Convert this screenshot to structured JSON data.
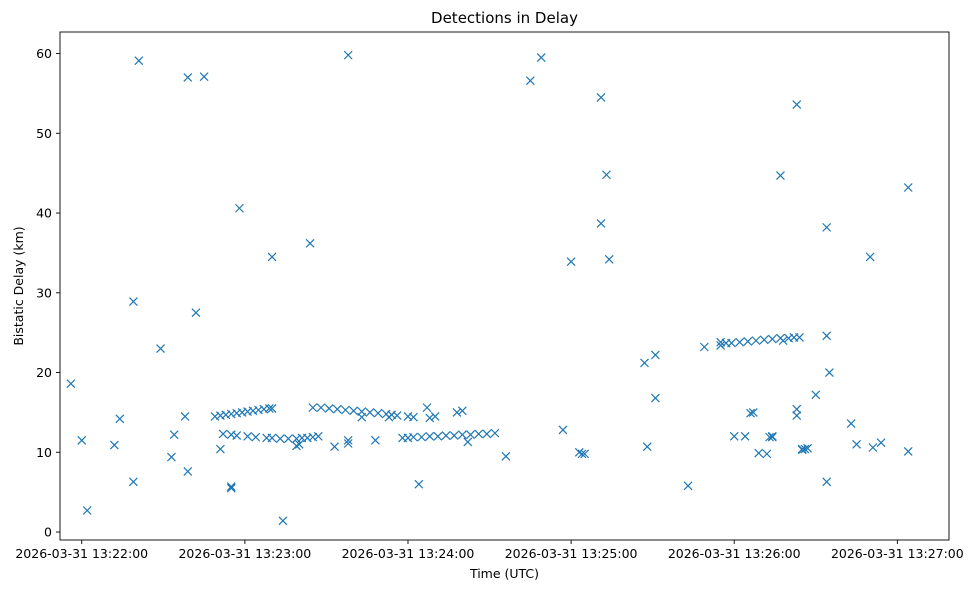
{
  "chart_data": {
    "type": "scatter",
    "title": "Detections in Delay",
    "xlabel": "Time (UTC)",
    "ylabel": "Bistatic Delay (km)",
    "x_tick_labels": [
      "2026-03-31 13:22:00",
      "2026-03-31 13:23:00",
      "2026-03-31 13:24:00",
      "2026-03-31 13:25:00",
      "2026-03-31 13:26:00",
      "2026-03-31 13:27:00"
    ],
    "y_tick_labels": [
      "0",
      "10",
      "20",
      "30",
      "40",
      "50",
      "60"
    ],
    "xlim": [
      "2026-03-31 13:21:52",
      "2026-03-31 13:27:19"
    ],
    "ylim": [
      -1.0,
      62.7
    ],
    "marker": "x",
    "color": "#1f77b4",
    "grid": false,
    "series": [
      {
        "x": [
          "2026-03-31 13:21:56",
          "2026-03-31 13:22:00",
          "2026-03-31 13:22:02",
          "2026-03-31 13:22:12",
          "2026-03-31 13:22:14",
          "2026-03-31 13:22:19",
          "2026-03-31 13:22:19",
          "2026-03-31 13:22:21",
          "2026-03-31 13:22:29",
          "2026-03-31 13:22:33",
          "2026-03-31 13:22:34",
          "2026-03-31 13:22:38",
          "2026-03-31 13:22:39",
          "2026-03-31 13:22:39",
          "2026-03-31 13:22:42",
          "2026-03-31 13:22:45",
          "2026-03-31 13:22:51",
          "2026-03-31 13:22:55",
          "2026-03-31 13:22:55",
          "2026-03-31 13:22:58",
          "2026-03-31 13:23:10",
          "2026-03-31 13:23:14",
          "2026-03-31 13:23:19",
          "2026-03-31 13:23:20",
          "2026-03-31 13:23:24",
          "2026-03-31 13:23:33",
          "2026-03-31 13:23:38",
          "2026-03-31 13:23:38",
          "2026-03-31 13:23:38",
          "2026-03-31 13:23:43",
          "2026-03-31 13:23:48",
          "2026-03-31 13:23:53",
          "2026-03-31 13:24:04",
          "2026-03-31 13:24:07",
          "2026-03-31 13:24:22",
          "2026-03-31 13:24:36",
          "2026-03-31 13:24:45",
          "2026-03-31 13:24:49",
          "2026-03-31 13:24:57",
          "2026-03-31 13:25:00",
          "2026-03-31 13:25:03",
          "2026-03-31 13:25:04",
          "2026-03-31 13:25:05",
          "2026-03-31 13:25:11",
          "2026-03-31 13:25:11",
          "2026-03-31 13:25:13",
          "2026-03-31 13:25:14",
          "2026-03-31 13:25:27",
          "2026-03-31 13:25:28",
          "2026-03-31 13:25:31",
          "2026-03-31 13:25:31",
          "2026-03-31 13:25:43",
          "2026-03-31 13:25:49",
          "2026-03-31 13:25:55",
          "2026-03-31 13:26:00",
          "2026-03-31 13:26:04",
          "2026-03-31 13:26:09",
          "2026-03-31 13:26:12",
          "2026-03-31 13:26:13",
          "2026-03-31 13:26:14",
          "2026-03-31 13:26:14",
          "2026-03-31 13:26:17",
          "2026-03-31 13:26:18",
          "2026-03-31 13:26:23",
          "2026-03-31 13:26:23",
          "2026-03-31 13:26:23",
          "2026-03-31 13:26:25",
          "2026-03-31 13:26:25",
          "2026-03-31 13:26:26",
          "2026-03-31 13:26:27",
          "2026-03-31 13:26:30",
          "2026-03-31 13:26:34",
          "2026-03-31 13:26:34",
          "2026-03-31 13:26:34",
          "2026-03-31 13:26:35",
          "2026-03-31 13:26:43",
          "2026-03-31 13:26:45",
          "2026-03-31 13:26:50",
          "2026-03-31 13:26:51",
          "2026-03-31 13:26:54",
          "2026-03-31 13:27:04",
          "2026-03-31 13:27:04",
          "2026-03-31 13:22:49",
          "2026-03-31 13:22:51",
          "2026-03-31 13:22:53",
          "2026-03-31 13:22:55",
          "2026-03-31 13:22:57",
          "2026-03-31 13:22:59",
          "2026-03-31 13:23:01",
          "2026-03-31 13:23:03",
          "2026-03-31 13:23:05",
          "2026-03-31 13:23:07",
          "2026-03-31 13:23:09",
          "2026-03-31 13:23:10",
          "2026-03-31 13:22:52",
          "2026-03-31 13:22:55",
          "2026-03-31 13:22:57",
          "2026-03-31 13:23:01",
          "2026-03-31 13:23:04",
          "2026-03-31 13:23:08",
          "2026-03-31 13:23:10",
          "2026-03-31 13:23:13",
          "2026-03-31 13:23:16",
          "2026-03-31 13:23:19",
          "2026-03-31 13:23:21",
          "2026-03-31 13:23:23",
          "2026-03-31 13:23:25",
          "2026-03-31 13:23:27",
          "2026-03-31 13:23:25",
          "2026-03-31 13:23:28",
          "2026-03-31 13:23:31",
          "2026-03-31 13:23:34",
          "2026-03-31 13:23:37",
          "2026-03-31 13:23:40",
          "2026-03-31 13:23:43",
          "2026-03-31 13:23:46",
          "2026-03-31 13:23:49",
          "2026-03-31 13:23:52",
          "2026-03-31 13:23:54",
          "2026-03-31 13:23:56",
          "2026-03-31 13:23:58",
          "2026-03-31 13:24:00",
          "2026-03-31 13:24:02",
          "2026-03-31 13:24:05",
          "2026-03-31 13:24:08",
          "2026-03-31 13:24:11",
          "2026-03-31 13:24:14",
          "2026-03-31 13:24:17",
          "2026-03-31 13:24:20",
          "2026-03-31 13:24:23",
          "2026-03-31 13:24:26",
          "2026-03-31 13:24:29",
          "2026-03-31 13:24:32",
          "2026-03-31 13:24:00",
          "2026-03-31 13:24:02",
          "2026-03-31 13:24:08",
          "2026-03-31 13:24:10",
          "2026-03-31 13:24:18",
          "2026-03-31 13:24:20",
          "2026-03-31 13:25:55",
          "2026-03-31 13:25:57",
          "2026-03-31 13:25:59",
          "2026-03-31 13:26:02",
          "2026-03-31 13:26:05",
          "2026-03-31 13:26:08",
          "2026-03-31 13:26:11",
          "2026-03-31 13:26:14",
          "2026-03-31 13:26:17",
          "2026-03-31 13:26:20",
          "2026-03-31 13:26:22",
          "2026-03-31 13:26:24",
          "2026-03-31 13:26:06",
          "2026-03-31 13:26:07"
        ],
        "y": [
          18.6,
          11.5,
          2.7,
          10.9,
          14.2,
          28.9,
          6.3,
          59.1,
          23.0,
          9.4,
          12.2,
          14.5,
          57.0,
          7.6,
          27.5,
          57.1,
          10.4,
          5.7,
          5.5,
          40.6,
          34.5,
          1.4,
          10.8,
          11.0,
          36.2,
          10.7,
          11.5,
          59.8,
          11.1,
          14.4,
          11.5,
          14.4,
          6.0,
          15.6,
          11.3,
          9.5,
          56.6,
          59.5,
          12.8,
          33.9,
          10.0,
          9.8,
          9.8,
          54.5,
          38.7,
          44.8,
          34.2,
          21.2,
          10.7,
          22.2,
          16.8,
          5.8,
          23.2,
          23.4,
          12.0,
          12.0,
          9.9,
          9.8,
          11.9,
          11.9,
          12.0,
          44.7,
          24.0,
          53.6,
          14.6,
          15.4,
          10.4,
          10.3,
          10.4,
          10.5,
          17.2,
          6.3,
          38.2,
          24.6,
          20.0,
          13.6,
          11.0,
          34.5,
          10.6,
          11.2,
          43.2,
          10.1,
          14.5,
          14.6,
          14.7,
          14.8,
          14.9,
          15.0,
          15.1,
          15.2,
          15.3,
          15.4,
          15.5,
          15.5,
          12.3,
          12.2,
          12.1,
          12.0,
          11.9,
          11.8,
          11.8,
          11.7,
          11.7,
          11.7,
          11.8,
          11.8,
          11.9,
          12.0,
          15.6,
          15.6,
          15.5,
          15.4,
          15.3,
          15.2,
          15.1,
          15.0,
          14.9,
          14.8,
          14.7,
          14.6,
          11.8,
          11.8,
          11.9,
          11.9,
          12.0,
          12.0,
          12.1,
          12.1,
          12.2,
          12.2,
          12.3,
          12.3,
          12.4,
          14.5,
          14.4,
          14.3,
          14.5,
          15.0,
          15.2,
          23.8,
          23.7,
          23.7,
          23.8,
          23.9,
          24.0,
          24.1,
          24.2,
          24.3,
          24.3,
          24.4,
          24.4,
          14.9,
          15.0
        ]
      }
    ]
  }
}
